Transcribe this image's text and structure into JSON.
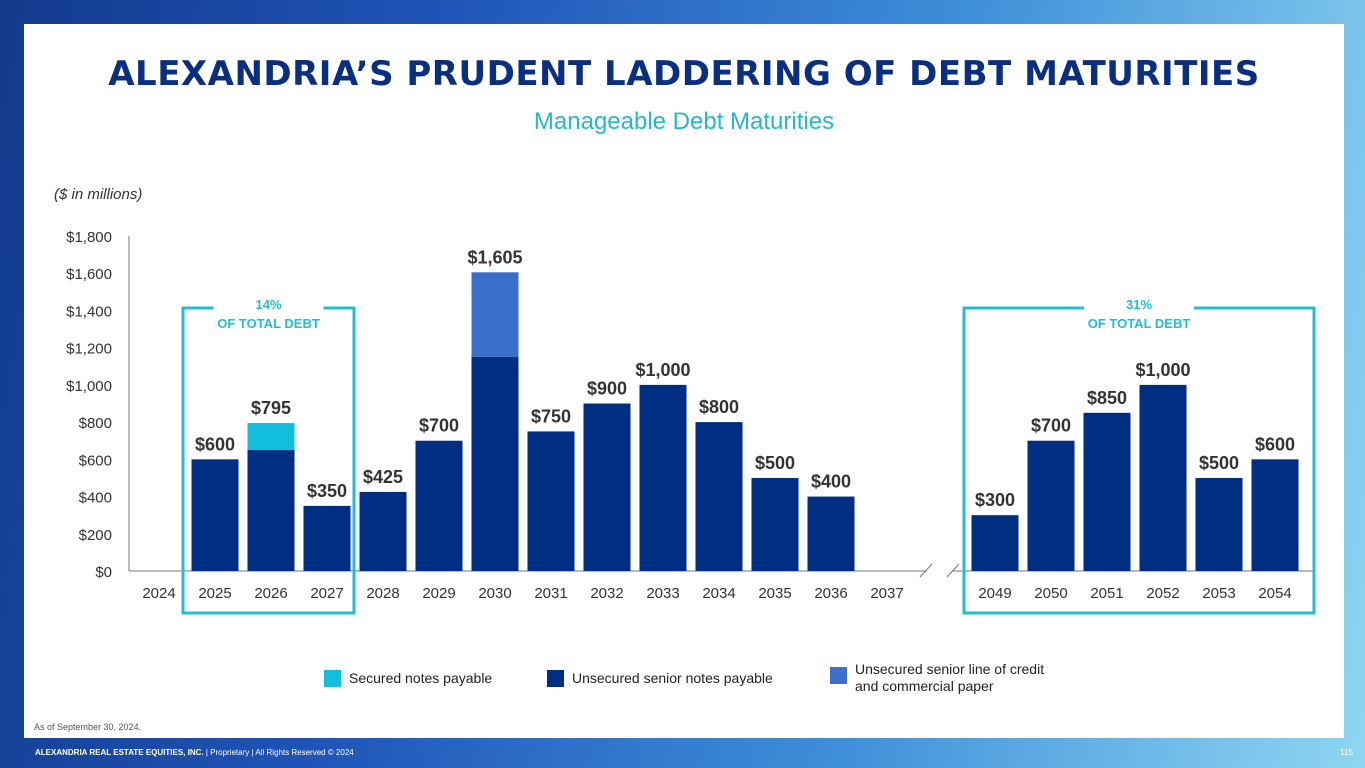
{
  "title": "ALEXANDRIA’S PRUDENT LADDERING OF DEBT MATURITIES",
  "subtitle": "Manageable Debt Maturities",
  "units_note": "($ in millions)",
  "as_of": "As of September 30, 2024.",
  "footer": {
    "company": "ALEXANDRIA REAL ESTATE EQUITIES, INC.",
    "rest": " | Proprietary | All Rights Reserved © 2024",
    "page": "115"
  },
  "colors": {
    "secured": "#12bedb",
    "unsecured_notes": "#002e82",
    "line_of_credit": "#3a70ca",
    "bracket": "#22bcd4",
    "axis": "#555555",
    "label": "#333333"
  },
  "brackets": [
    {
      "pct": "14%",
      "text": "OF TOTAL DEBT",
      "years": [
        "2025",
        "2027"
      ]
    },
    {
      "pct": "31%",
      "text": "OF TOTAL DEBT",
      "years": [
        "2049",
        "2054"
      ]
    }
  ],
  "chart_data": {
    "type": "bar",
    "stacked": true,
    "ylim": [
      0,
      1800
    ],
    "yticks": [
      "$0",
      "$200",
      "$400",
      "$600",
      "$800",
      "$1,000",
      "$1,200",
      "$1,400",
      "$1,600",
      "$1,800"
    ],
    "ytick_values": [
      0,
      200,
      400,
      600,
      800,
      1000,
      1200,
      1400,
      1600,
      1800
    ],
    "axis_break": true,
    "categories_left": [
      "2024",
      "2025",
      "2026",
      "2027",
      "2028",
      "2029",
      "2030",
      "2031",
      "2032",
      "2033",
      "2034",
      "2035",
      "2036",
      "2037"
    ],
    "categories_right": [
      "2049",
      "2050",
      "2051",
      "2052",
      "2053",
      "2054"
    ],
    "series": [
      {
        "name": "Secured notes payable",
        "key": "secured",
        "left": [
          0,
          0,
          145,
          0,
          0,
          0,
          0,
          0,
          0,
          0,
          0,
          0,
          0,
          0
        ],
        "right": [
          0,
          0,
          0,
          0,
          0,
          0
        ]
      },
      {
        "name": "Unsecured senior notes payable",
        "key": "unsecured_notes",
        "left": [
          0,
          600,
          650,
          350,
          425,
          700,
          1150,
          750,
          900,
          1000,
          800,
          500,
          400,
          0
        ],
        "right": [
          300,
          700,
          850,
          1000,
          500,
          600
        ]
      },
      {
        "name": "Unsecured senior line of credit and commercial paper",
        "key": "line_of_credit",
        "left": [
          0,
          0,
          0,
          0,
          0,
          0,
          455,
          0,
          0,
          0,
          0,
          0,
          0,
          0
        ],
        "right": [
          0,
          0,
          0,
          0,
          0,
          0
        ]
      }
    ],
    "total_labels_left": [
      "",
      "$600",
      "$795",
      "$350",
      "$425",
      "$700",
      "$1,605",
      "$750",
      "$900",
      "$1,000",
      "$800",
      "$500",
      "$400",
      ""
    ],
    "total_labels_right": [
      "$300",
      "$700",
      "$850",
      "$1,000",
      "$500",
      "$600"
    ]
  },
  "legend": [
    {
      "key": "secured",
      "label": "Secured notes payable"
    },
    {
      "key": "unsecured_notes",
      "label": "Unsecured senior notes payable"
    },
    {
      "key": "line_of_credit",
      "label": "Unsecured senior line of credit and commercial paper"
    }
  ]
}
